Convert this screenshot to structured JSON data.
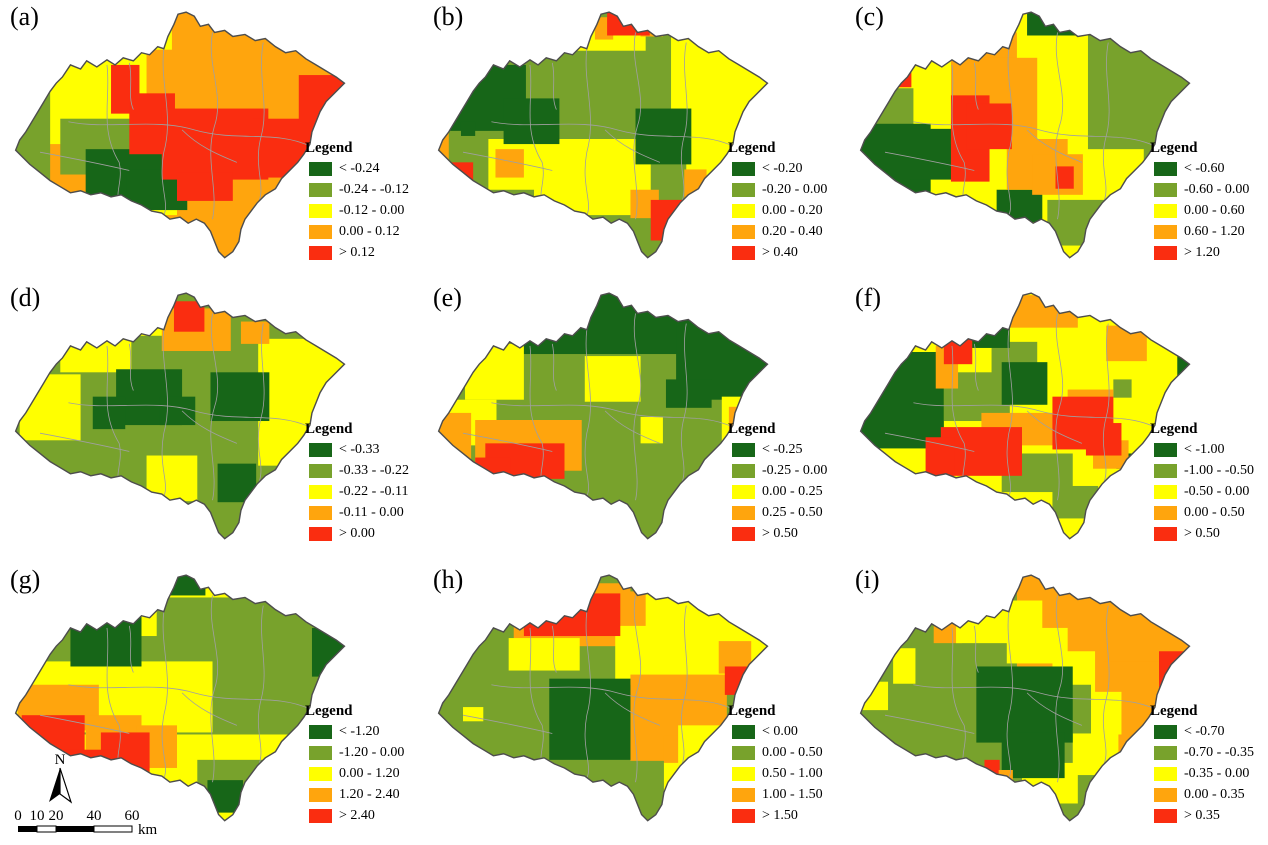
{
  "colors": {
    "class_colors": [
      "#176618",
      "#78a22c",
      "#ffff00",
      "#ffa50d",
      "#fa2d10"
    ],
    "outline": "#4d4d4d",
    "district": "#a0a0a0"
  },
  "map_annotations": {
    "north_label": "N",
    "scale_ticks": [
      "0",
      "10",
      "20",
      "40",
      "60"
    ],
    "scale_unit": "km"
  },
  "panels": [
    {
      "label": "(a)",
      "legend_title": "Legend",
      "base_class": 3,
      "legend": [
        {
          "label": "< -0.24",
          "class": 0
        },
        {
          "label": "-0.24 - -0.12",
          "class": 1
        },
        {
          "label": "-0.12 - 0.00",
          "class": 2
        },
        {
          "label": "0.00 - 0.12",
          "class": 3
        },
        {
          "label": "> 0.12",
          "class": 4
        }
      ],
      "patches": [
        [
          2,
          25,
          45,
          110,
          95
        ],
        [
          1,
          0,
          80,
          40,
          95
        ],
        [
          1,
          50,
          115,
          95,
          55
        ],
        [
          2,
          140,
          110,
          25,
          100
        ],
        [
          0,
          75,
          145,
          100,
          60
        ],
        [
          0,
          115,
          165,
          60,
          40
        ],
        [
          4,
          100,
          62,
          28,
          48
        ],
        [
          4,
          118,
          90,
          45,
          60
        ],
        [
          4,
          150,
          105,
          105,
          70
        ],
        [
          4,
          240,
          115,
          70,
          58
        ],
        [
          4,
          285,
          72,
          45,
          45
        ],
        [
          4,
          165,
          168,
          55,
          28
        ],
        [
          2,
          138,
          15,
          22,
          32
        ]
      ]
    },
    {
      "label": "(b)",
      "legend_title": "Legend",
      "base_class": 1,
      "legend": [
        {
          "label": "< -0.20",
          "class": 0
        },
        {
          "label": "-0.20 - 0.00",
          "class": 1
        },
        {
          "label": "0.00 - 0.20",
          "class": 2
        },
        {
          "label": "0.20 - 0.40",
          "class": 3
        },
        {
          "label": "> 0.40",
          "class": 4
        }
      ],
      "patches": [
        [
          2,
          235,
          20,
          100,
          125
        ],
        [
          2,
          140,
          18,
          70,
          30
        ],
        [
          2,
          250,
          140,
          85,
          40
        ],
        [
          2,
          100,
          135,
          115,
          75
        ],
        [
          2,
          20,
          80,
          30,
          35
        ],
        [
          2,
          55,
          135,
          50,
          50
        ],
        [
          0,
          12,
          62,
          80,
          65
        ],
        [
          0,
          70,
          95,
          55,
          45
        ],
        [
          0,
          200,
          105,
          55,
          55
        ],
        [
          0,
          28,
          118,
          14,
          14
        ],
        [
          3,
          160,
          15,
          18,
          22
        ],
        [
          3,
          205,
          12,
          22,
          22
        ],
        [
          3,
          0,
          128,
          16,
          30
        ],
        [
          3,
          62,
          145,
          28,
          28
        ],
        [
          3,
          195,
          185,
          28,
          28
        ],
        [
          3,
          248,
          165,
          22,
          32
        ],
        [
          3,
          298,
          150,
          18,
          22
        ],
        [
          4,
          172,
          5,
          42,
          28
        ],
        [
          4,
          8,
          158,
          32,
          32
        ],
        [
          4,
          215,
          195,
          48,
          40
        ],
        [
          4,
          225,
          232,
          16,
          22
        ]
      ]
    },
    {
      "label": "(c)",
      "legend_title": "Legend",
      "base_class": 2,
      "legend": [
        {
          "label": "< -0.60",
          "class": 0
        },
        {
          "label": "-0.60 - 0.00",
          "class": 1
        },
        {
          "label": "0.00 - 0.60",
          "class": 2
        },
        {
          "label": "0.60 - 1.20",
          "class": 3
        },
        {
          "label": "> 1.20",
          "class": 4
        }
      ],
      "patches": [
        [
          1,
          230,
          30,
          105,
          115
        ],
        [
          1,
          285,
          140,
          50,
          65
        ],
        [
          1,
          190,
          195,
          65,
          45
        ],
        [
          1,
          18,
          85,
          40,
          55
        ],
        [
          1,
          80,
          20,
          18,
          25
        ],
        [
          0,
          170,
          5,
          75,
          28
        ],
        [
          0,
          0,
          120,
          75,
          85
        ],
        [
          0,
          55,
          125,
          50,
          50
        ],
        [
          0,
          140,
          185,
          45,
          32
        ],
        [
          3,
          125,
          30,
          35,
          30
        ],
        [
          3,
          95,
          55,
          85,
          85
        ],
        [
          3,
          150,
          135,
          60,
          50
        ],
        [
          3,
          175,
          150,
          50,
          40
        ],
        [
          4,
          18,
          58,
          38,
          26
        ],
        [
          4,
          95,
          92,
          38,
          85
        ],
        [
          4,
          110,
          100,
          45,
          45
        ],
        [
          4,
          198,
          162,
          18,
          22
        ]
      ]
    },
    {
      "label": "(d)",
      "legend_title": "Legend",
      "base_class": 1,
      "legend": [
        {
          "label": "< -0.33",
          "class": 0
        },
        {
          "label": "-0.33 - -0.22",
          "class": 1
        },
        {
          "label": "-0.22 - -0.11",
          "class": 2
        },
        {
          "label": "-0.11 - 0.00",
          "class": 3
        },
        {
          "label": "> 0.00",
          "class": 4
        }
      ],
      "patches": [
        [
          2,
          50,
          38,
          70,
          50
        ],
        [
          2,
          10,
          90,
          60,
          65
        ],
        [
          2,
          245,
          55,
          90,
          125
        ],
        [
          2,
          135,
          170,
          50,
          45
        ],
        [
          2,
          95,
          30,
          75,
          22
        ],
        [
          0,
          105,
          85,
          65,
          55
        ],
        [
          0,
          82,
          112,
          32,
          32
        ],
        [
          0,
          148,
          112,
          35,
          28
        ],
        [
          0,
          198,
          88,
          58,
          48
        ],
        [
          0,
          8,
          168,
          16,
          16
        ],
        [
          0,
          205,
          178,
          38,
          38
        ],
        [
          3,
          62,
          22,
          28,
          28
        ],
        [
          3,
          150,
          25,
          68,
          42
        ],
        [
          3,
          228,
          38,
          28,
          22
        ],
        [
          3,
          0,
          72,
          14,
          32
        ],
        [
          4,
          162,
          18,
          30,
          30
        ],
        [
          4,
          66,
          22,
          12,
          14
        ]
      ]
    },
    {
      "label": "(e)",
      "legend_title": "Legend",
      "base_class": 1,
      "legend": [
        {
          "label": "< -0.25",
          "class": 0
        },
        {
          "label": "-0.25 - 0.00",
          "class": 1
        },
        {
          "label": "0.00 - 0.25",
          "class": 2
        },
        {
          "label": "0.25 - 0.50",
          "class": 3
        },
        {
          "label": "> 0.50",
          "class": 4
        }
      ],
      "patches": [
        [
          0,
          85,
          5,
          170,
          65
        ],
        [
          0,
          240,
          25,
          95,
          90
        ],
        [
          0,
          230,
          95,
          45,
          28
        ],
        [
          2,
          150,
          72,
          55,
          45
        ],
        [
          2,
          32,
          60,
          58,
          55
        ],
        [
          2,
          8,
          115,
          55,
          45
        ],
        [
          2,
          205,
          132,
          22,
          26
        ],
        [
          2,
          285,
          112,
          35,
          45
        ],
        [
          3,
          0,
          128,
          38,
          62
        ],
        [
          3,
          2,
          65,
          14,
          28
        ],
        [
          3,
          42,
          135,
          105,
          50
        ],
        [
          3,
          292,
          122,
          16,
          28
        ],
        [
          4,
          52,
          158,
          78,
          35
        ],
        [
          4,
          42,
          172,
          35,
          28
        ]
      ]
    },
    {
      "label": "(f)",
      "legend_title": "Legend",
      "base_class": 2,
      "legend": [
        {
          "label": "< -1.00",
          "class": 0
        },
        {
          "label": "-1.00 - -0.50",
          "class": 1
        },
        {
          "label": "-0.50 - 0.00",
          "class": 2
        },
        {
          "label": "0.00 - 0.50",
          "class": 3
        },
        {
          "label": "> 0.50",
          "class": 4
        }
      ],
      "patches": [
        [
          1,
          88,
          88,
          65,
          48
        ],
        [
          1,
          135,
          58,
          45,
          32
        ],
        [
          1,
          145,
          168,
          70,
          38
        ],
        [
          1,
          195,
          200,
          45,
          32
        ],
        [
          1,
          255,
          95,
          18,
          18
        ],
        [
          0,
          0,
          68,
          88,
          95
        ],
        [
          0,
          105,
          32,
          48,
          32
        ],
        [
          0,
          145,
          78,
          45,
          42
        ],
        [
          0,
          318,
          72,
          17,
          22
        ],
        [
          0,
          258,
          168,
          25,
          15
        ],
        [
          3,
          150,
          12,
          70,
          32
        ],
        [
          3,
          248,
          42,
          40,
          35
        ],
        [
          3,
          285,
          28,
          28,
          25
        ],
        [
          3,
          125,
          128,
          95,
          32
        ],
        [
          3,
          210,
          105,
          45,
          45
        ],
        [
          3,
          235,
          155,
          35,
          28
        ],
        [
          3,
          80,
          62,
          22,
          42
        ],
        [
          4,
          88,
          22,
          28,
          58
        ],
        [
          4,
          85,
          142,
          80,
          48
        ],
        [
          4,
          70,
          152,
          28,
          38
        ],
        [
          4,
          195,
          112,
          60,
          52
        ],
        [
          4,
          228,
          138,
          35,
          32
        ]
      ]
    },
    {
      "label": "(g)",
      "legend_title": "Legend",
      "base_class": 2,
      "legend": [
        {
          "label": "< -1.20",
          "class": 0
        },
        {
          "label": "-1.20 - 0.00",
          "class": 1
        },
        {
          "label": "0.00 - 1.20",
          "class": 2
        },
        {
          "label": "1.20 - 2.40",
          "class": 3
        },
        {
          "label": "> 2.40",
          "class": 4
        }
      ],
      "patches": [
        [
          1,
          50,
          32,
          285,
          135
        ],
        [
          1,
          8,
          62,
          50,
          48
        ],
        [
          1,
          185,
          192,
          65,
          42
        ],
        [
          2,
          15,
          95,
          185,
          70
        ],
        [
          2,
          100,
          32,
          45,
          38
        ],
        [
          0,
          60,
          42,
          70,
          58
        ],
        [
          0,
          148,
          5,
          45,
          25
        ],
        [
          0,
          298,
          62,
          37,
          48
        ],
        [
          0,
          195,
          212,
          35,
          32
        ],
        [
          3,
          8,
          118,
          80,
          45
        ],
        [
          3,
          75,
          148,
          55,
          45
        ],
        [
          3,
          125,
          158,
          40,
          42
        ],
        [
          4,
          12,
          148,
          62,
          48
        ],
        [
          4,
          90,
          165,
          48,
          50
        ],
        [
          4,
          42,
          182,
          65,
          32
        ]
      ]
    },
    {
      "label": "(h)",
      "legend_title": "Legend",
      "base_class": 1,
      "legend": [
        {
          "label": "< 0.00",
          "class": 0
        },
        {
          "label": "0.00 - 0.50",
          "class": 1
        },
        {
          "label": "0.50 - 1.00",
          "class": 2
        },
        {
          "label": "1.00 - 1.50",
          "class": 3
        },
        {
          "label": "> 1.50",
          "class": 4
        }
      ],
      "patches": [
        [
          3,
          80,
          18,
          140,
          62
        ],
        [
          2,
          120,
          38,
          25,
          22
        ],
        [
          2,
          75,
          72,
          70,
          32
        ],
        [
          2,
          210,
          25,
          125,
          95
        ],
        [
          2,
          180,
          60,
          48,
          58
        ],
        [
          3,
          195,
          108,
          95,
          85
        ],
        [
          3,
          282,
          75,
          32,
          32
        ],
        [
          3,
          228,
          168,
          32,
          28
        ],
        [
          2,
          242,
          158,
          48,
          45
        ],
        [
          2,
          228,
          195,
          25,
          28
        ],
        [
          2,
          30,
          140,
          20,
          14
        ],
        [
          4,
          90,
          28,
          95,
          42
        ],
        [
          4,
          78,
          22,
          16,
          20
        ],
        [
          4,
          288,
          100,
          28,
          28
        ],
        [
          0,
          115,
          112,
          80,
          80
        ],
        [
          1,
          195,
          8,
          28,
          18
        ]
      ]
    },
    {
      "label": "(i)",
      "legend_title": "Legend",
      "base_class": 1,
      "legend": [
        {
          "label": "< -0.70",
          "class": 0
        },
        {
          "label": "-0.70 - -0.35",
          "class": 1
        },
        {
          "label": "-0.35 - 0.00",
          "class": 2
        },
        {
          "label": "0.00 - 0.35",
          "class": 3
        },
        {
          "label": "> 0.35",
          "class": 4
        }
      ],
      "patches": [
        [
          3,
          160,
          5,
          175,
          135
        ],
        [
          3,
          245,
          95,
          90,
          115
        ],
        [
          2,
          82,
          22,
          32,
          35
        ],
        [
          3,
          78,
          42,
          28,
          35
        ],
        [
          2,
          100,
          35,
          85,
          42
        ],
        [
          2,
          150,
          62,
          60,
          35
        ],
        [
          2,
          195,
          85,
          42,
          45
        ],
        [
          2,
          225,
          125,
          38,
          42
        ],
        [
          2,
          215,
          165,
          45,
          42
        ],
        [
          2,
          165,
          195,
          55,
          40
        ],
        [
          2,
          5,
          115,
          28,
          28
        ],
        [
          2,
          38,
          82,
          22,
          35
        ],
        [
          1,
          198,
          118,
          35,
          48
        ],
        [
          0,
          120,
          100,
          95,
          75
        ],
        [
          0,
          145,
          165,
          62,
          45
        ],
        [
          0,
          15,
          65,
          16,
          28
        ],
        [
          4,
          300,
          85,
          35,
          48
        ],
        [
          4,
          128,
          192,
          15,
          14
        ],
        [
          3,
          142,
          202,
          14,
          14
        ]
      ]
    }
  ]
}
